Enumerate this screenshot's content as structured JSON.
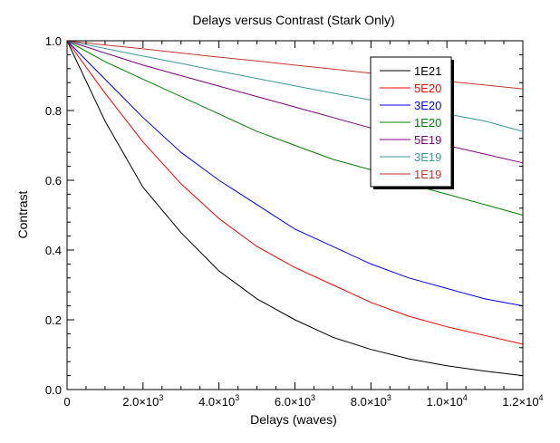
{
  "chart_data": {
    "type": "line",
    "title": "Delays versus Contrast (Stark Only)",
    "xlabel": "Delays (waves)",
    "ylabel": "Contrast",
    "xlim": [
      0,
      12000
    ],
    "ylim": [
      0.0,
      1.0
    ],
    "grid": false,
    "legend_placement": "top-right",
    "x_ticks": [
      {
        "value": 0,
        "mant": "0",
        "exp": ""
      },
      {
        "value": 2000,
        "mant": "2.0×10",
        "exp": "3"
      },
      {
        "value": 4000,
        "mant": "4.0×10",
        "exp": "3"
      },
      {
        "value": 6000,
        "mant": "6.0×10",
        "exp": "3"
      },
      {
        "value": 8000,
        "mant": "8.0×10",
        "exp": "3"
      },
      {
        "value": 10000,
        "mant": "1.0×10",
        "exp": "4"
      },
      {
        "value": 12000,
        "mant": "1.2×10",
        "exp": "4"
      }
    ],
    "y_ticks": [
      {
        "value": 0.0,
        "label": "0.0"
      },
      {
        "value": 0.2,
        "label": "0.2"
      },
      {
        "value": 0.4,
        "label": "0.4"
      },
      {
        "value": 0.6,
        "label": "0.6"
      },
      {
        "value": 0.8,
        "label": "0.8"
      },
      {
        "value": 1.0,
        "label": "1.0"
      }
    ],
    "x": [
      0,
      1000,
      2000,
      3000,
      4000,
      5000,
      6000,
      7000,
      8000,
      9000,
      10000,
      11000,
      12000
    ],
    "series": [
      {
        "name": "1E21",
        "color": "#000000",
        "values": [
          1.0,
          0.77,
          0.58,
          0.45,
          0.34,
          0.26,
          0.2,
          0.15,
          0.115,
          0.088,
          0.068,
          0.053,
          0.04
        ]
      },
      {
        "name": "5E20",
        "color": "#ff0000",
        "values": [
          1.0,
          0.85,
          0.71,
          0.59,
          0.49,
          0.41,
          0.35,
          0.3,
          0.25,
          0.21,
          0.18,
          0.155,
          0.13
        ]
      },
      {
        "name": "3E20",
        "color": "#0000ff",
        "values": [
          1.0,
          0.89,
          0.78,
          0.68,
          0.6,
          0.53,
          0.46,
          0.41,
          0.36,
          0.32,
          0.29,
          0.26,
          0.24
        ]
      },
      {
        "name": "1E20",
        "color": "#008000",
        "values": [
          1.0,
          0.94,
          0.89,
          0.84,
          0.79,
          0.74,
          0.7,
          0.66,
          0.63,
          0.59,
          0.56,
          0.53,
          0.5
        ]
      },
      {
        "name": "5E19",
        "color": "#800080",
        "values": [
          1.0,
          0.965,
          0.93,
          0.9,
          0.87,
          0.84,
          0.81,
          0.78,
          0.75,
          0.72,
          0.7,
          0.675,
          0.65
        ]
      },
      {
        "name": "3E19",
        "color": "#3c9a9a",
        "values": [
          1.0,
          0.978,
          0.956,
          0.935,
          0.913,
          0.892,
          0.871,
          0.85,
          0.83,
          0.81,
          0.79,
          0.77,
          0.74
        ]
      },
      {
        "name": "1E19",
        "color": "#c0392b",
        "values": [
          1.0,
          0.988,
          0.977,
          0.965,
          0.953,
          0.942,
          0.93,
          0.919,
          0.907,
          0.896,
          0.884,
          0.873,
          0.862
        ]
      }
    ],
    "legend_colors": [
      "#000000",
      "#ff0000",
      "#0000ff",
      "#008000",
      "#800080",
      "#3c9a9a",
      "#c0392b"
    ]
  }
}
